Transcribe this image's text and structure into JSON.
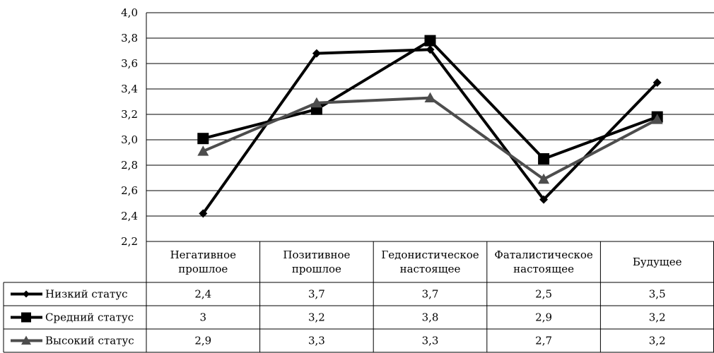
{
  "chart_data": {
    "type": "line",
    "ylim": [
      2.2,
      4.0
    ],
    "yticks": [
      "2,2",
      "2,4",
      "2,6",
      "2,8",
      "3,0",
      "3,2",
      "3,4",
      "3,6",
      "3,8",
      "4,0"
    ],
    "grid": true,
    "categories": [
      [
        "Негативное",
        "прошлое"
      ],
      [
        "Позитивное",
        "прошлое"
      ],
      [
        "Гедонистическое",
        "настоящее"
      ],
      [
        "Фаталистическое",
        "настоящее"
      ],
      [
        "Будущее"
      ]
    ],
    "series": [
      {
        "name": "Низкий статус",
        "marker": "diamond",
        "color": "#000000",
        "values": [
          2.42,
          3.68,
          3.71,
          2.53,
          3.45
        ],
        "labels": [
          "2,4",
          "3,7",
          "3,7",
          "2,5",
          "3,5"
        ]
      },
      {
        "name": "Средний статус",
        "marker": "square",
        "color": "#000000",
        "values": [
          3.01,
          3.24,
          3.78,
          2.85,
          3.18
        ],
        "labels": [
          "3",
          "3,2",
          "3,8",
          "2,9",
          "3,2"
        ]
      },
      {
        "name": "Высокий статус",
        "marker": "triangle",
        "color": "#4d4d4d",
        "values": [
          2.91,
          3.29,
          3.33,
          2.69,
          3.16
        ],
        "labels": [
          "2,9",
          "3,3",
          "3,3",
          "2,7",
          "3,2"
        ]
      }
    ]
  }
}
